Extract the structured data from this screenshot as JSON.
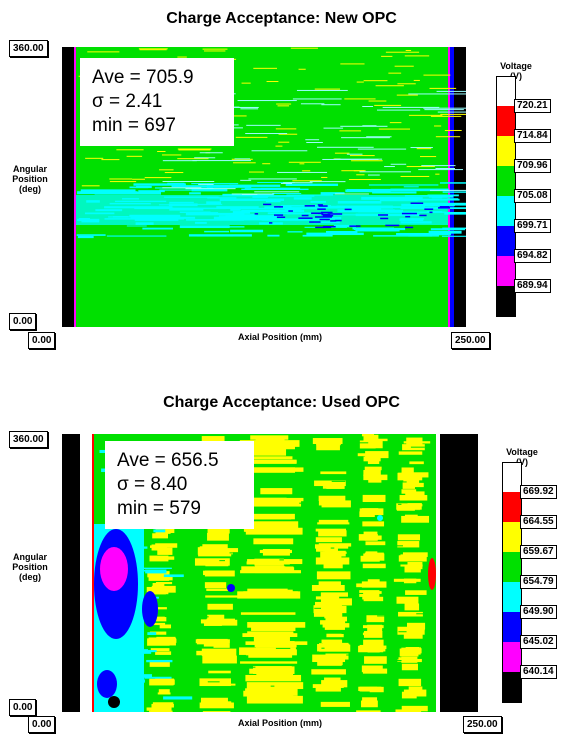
{
  "chart_data": [
    {
      "type": "heatmap",
      "title": "Charge Acceptance: New OPC",
      "xlabel": "Axial Position (mm)",
      "ylabel": "Angular Position (deg)",
      "xlim": [
        0,
        250
      ],
      "ylim": [
        0,
        360
      ],
      "x_min_label": "0.00",
      "x_max_label": "250.00",
      "y_min_label": "0.00",
      "y_max_label": "360.00",
      "stats": [
        "Ave = 705.9",
        "σ = 2.41",
        "min = 697"
      ],
      "colorbar": {
        "title": "Voltage (V)",
        "levels": [
          "720.21",
          "714.84",
          "709.96",
          "705.08",
          "699.71",
          "694.82",
          "689.94"
        ],
        "colors": [
          "#ffffff",
          "#ff0000",
          "#ffff00",
          "#00e000",
          "#00ffff",
          "#0000ff",
          "#ff00ff",
          "#000000"
        ]
      }
    },
    {
      "type": "heatmap",
      "title": "Charge Acceptance: Used OPC",
      "xlabel": "Axial Position (mm)",
      "ylabel": "Angular Position (deg)",
      "xlim": [
        0,
        250
      ],
      "ylim": [
        0,
        360
      ],
      "x_min_label": "0.00",
      "x_max_label": "250.00",
      "y_min_label": "0.00",
      "y_max_label": "360.00",
      "stats": [
        "Ave = 656.5",
        "σ = 8.40",
        "min = 579"
      ],
      "colorbar": {
        "title": "Voltage (V)",
        "levels": [
          "669.92",
          "664.55",
          "659.67",
          "654.79",
          "649.90",
          "645.02",
          "640.14"
        ],
        "colors": [
          "#ffffff",
          "#ff0000",
          "#ffff00",
          "#00e000",
          "#00ffff",
          "#0000ff",
          "#ff00ff",
          "#000000"
        ]
      }
    }
  ]
}
